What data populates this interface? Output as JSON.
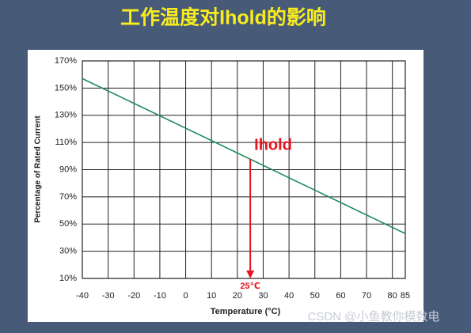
{
  "chart_data": {
    "type": "line",
    "title": "工作温度对Ihold的影响",
    "x_label": "Temperature (°C)",
    "y_label": "Percentage of Rated Current",
    "x": [
      -40,
      85
    ],
    "series": [
      {
        "name": "Ihold",
        "color": "#1e8a5c",
        "values": [
          157,
          43
        ]
      }
    ],
    "xlim": [
      -40,
      85
    ],
    "xticks": [
      -40,
      -30,
      -20,
      -10,
      0,
      10,
      20,
      30,
      40,
      50,
      60,
      70,
      80,
      85
    ],
    "ylim": [
      10,
      170
    ],
    "yticks": [
      {
        "value": 10,
        "label": "10%"
      },
      {
        "value": 30,
        "label": "30%"
      },
      {
        "value": 50,
        "label": "50%"
      },
      {
        "value": 70,
        "label": "70%"
      },
      {
        "value": 90,
        "label": "90%"
      },
      {
        "value": 110,
        "label": "110%"
      },
      {
        "value": 130,
        "label": "130%"
      },
      {
        "value": 150,
        "label": "150%"
      },
      {
        "value": 170,
        "label": "170%"
      }
    ],
    "grid": true,
    "annotations": [
      {
        "text": "Ihold",
        "color": "#e8141c"
      },
      {
        "text": "25℃",
        "x": 25,
        "color": "#e8141c"
      }
    ],
    "watermark": "CSDN @小鱼教你模数电"
  }
}
